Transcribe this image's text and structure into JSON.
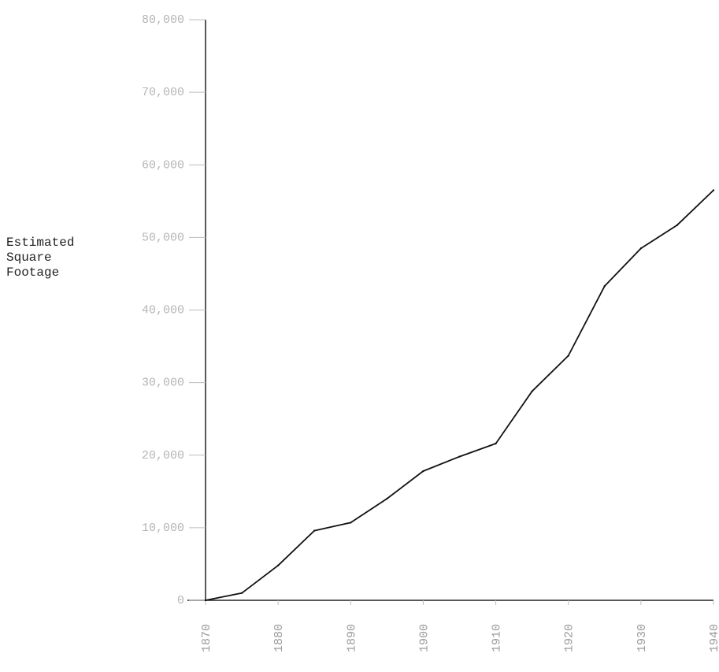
{
  "chart_data": {
    "type": "line",
    "title": "",
    "ylabel_lines": [
      "Estimated",
      "Square",
      "Footage"
    ],
    "xlabel": "",
    "xlim": [
      1870,
      1940
    ],
    "ylim": [
      0,
      80000
    ],
    "yticks": [
      {
        "value": 0,
        "label": "0"
      },
      {
        "value": 10000,
        "label": "10,000"
      },
      {
        "value": 20000,
        "label": "20,000"
      },
      {
        "value": 30000,
        "label": "30,000"
      },
      {
        "value": 40000,
        "label": "40,000"
      },
      {
        "value": 50000,
        "label": "50,000"
      },
      {
        "value": 60000,
        "label": "60,000"
      },
      {
        "value": 70000,
        "label": "70,000"
      },
      {
        "value": 80000,
        "label": "80,000"
      }
    ],
    "xticks": [
      {
        "value": 1870,
        "label": "1870"
      },
      {
        "value": 1880,
        "label": "1880"
      },
      {
        "value": 1890,
        "label": "1890"
      },
      {
        "value": 1900,
        "label": "1900"
      },
      {
        "value": 1910,
        "label": "1910"
      },
      {
        "value": 1920,
        "label": "1920"
      },
      {
        "value": 1930,
        "label": "1930"
      },
      {
        "value": 1940,
        "label": "1940"
      }
    ],
    "grid": false,
    "legend": "none",
    "line_color": "#111111",
    "series": [
      {
        "x": [
          1870,
          1875,
          1880,
          1885,
          1890,
          1895,
          1900,
          1905,
          1910,
          1915,
          1920,
          1925,
          1930,
          1935,
          1940
        ],
        "y": [
          0,
          1000,
          4800,
          9600,
          10700,
          14000,
          17800,
          19800,
          21600,
          28800,
          33700,
          43300,
          48500,
          51700,
          56500
        ]
      }
    ]
  }
}
